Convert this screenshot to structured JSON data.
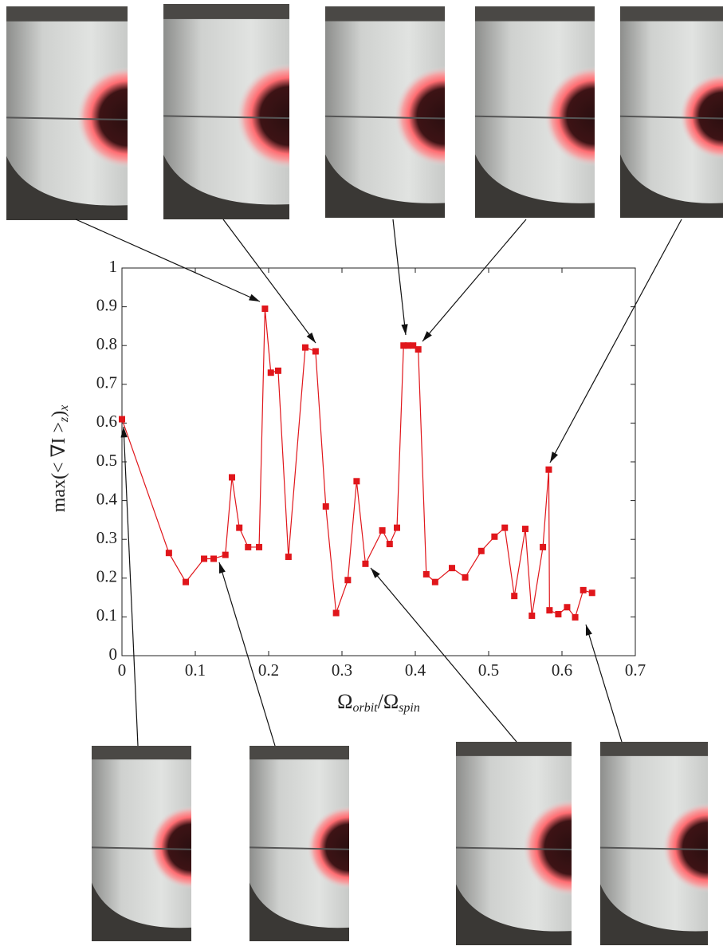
{
  "chart_data": {
    "type": "line",
    "xlabel": [
      "Ω",
      "orbit",
      "/Ω",
      "spin"
    ],
    "ylabel": [
      "max(< ∇I >",
      "z",
      ")",
      "x"
    ],
    "color": "#e0161b",
    "x": [
      0.0,
      0.064,
      0.087,
      0.112,
      0.125,
      0.141,
      0.15,
      0.16,
      0.172,
      0.187,
      0.195,
      0.203,
      0.213,
      0.227,
      0.25,
      0.264,
      0.278,
      0.292,
      0.308,
      0.32,
      0.332,
      0.355,
      0.365,
      0.375,
      0.384,
      0.39,
      0.397,
      0.404,
      0.415,
      0.427,
      0.45,
      0.468,
      0.49,
      0.508,
      0.522,
      0.535,
      0.55,
      0.559,
      0.574,
      0.582,
      0.583,
      0.595,
      0.607,
      0.618,
      0.629,
      0.641
    ],
    "values": [
      0.61,
      0.265,
      0.19,
      0.25,
      0.25,
      0.26,
      0.46,
      0.33,
      0.28,
      0.28,
      0.895,
      0.73,
      0.735,
      0.255,
      0.795,
      0.785,
      0.385,
      0.11,
      0.195,
      0.45,
      0.237,
      0.323,
      0.288,
      0.33,
      0.8,
      0.8,
      0.8,
      0.79,
      0.21,
      0.19,
      0.226,
      0.202,
      0.27,
      0.307,
      0.33,
      0.154,
      0.327,
      0.103,
      0.28,
      0.48,
      0.117,
      0.107,
      0.125,
      0.099,
      0.169,
      0.162
    ],
    "xlim": [
      0,
      0.7
    ],
    "xticks": [
      0,
      0.1,
      0.2,
      0.3,
      0.4,
      0.5,
      0.6,
      0.7
    ],
    "ylim": [
      0,
      1
    ],
    "yticks": [
      0,
      0.1,
      0.2,
      0.3,
      0.4,
      0.5,
      0.6,
      0.7,
      0.8,
      0.9,
      1
    ]
  }
}
